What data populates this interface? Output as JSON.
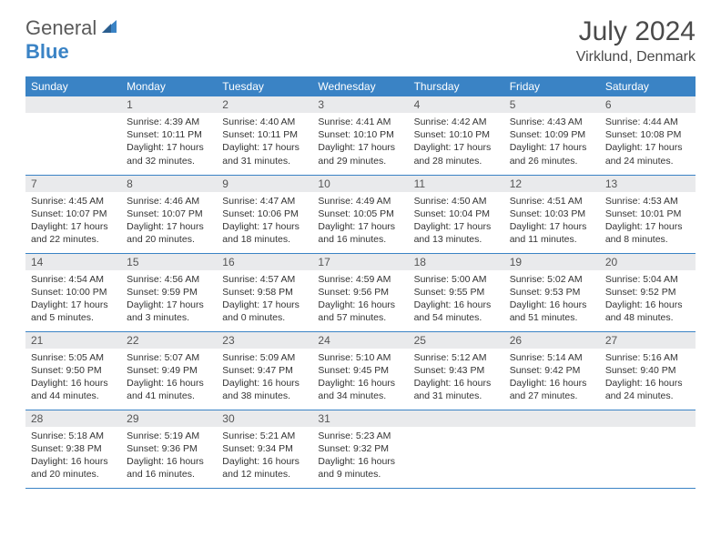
{
  "brand": {
    "word1": "General",
    "word2": "Blue",
    "logo_color": "#3a83c5"
  },
  "title": "July 2024",
  "location": "Virklund, Denmark",
  "colors": {
    "header_bg": "#3a83c5",
    "header_text": "#ffffff",
    "daynum_bg": "#e9eaec",
    "row_border": "#3a83c5",
    "body_text": "#333333"
  },
  "day_headers": [
    "Sunday",
    "Monday",
    "Tuesday",
    "Wednesday",
    "Thursday",
    "Friday",
    "Saturday"
  ],
  "weeks": [
    [
      {
        "n": "",
        "sunrise": "",
        "sunset": "",
        "daylight": ""
      },
      {
        "n": "1",
        "sunrise": "Sunrise: 4:39 AM",
        "sunset": "Sunset: 10:11 PM",
        "daylight": "Daylight: 17 hours and 32 minutes."
      },
      {
        "n": "2",
        "sunrise": "Sunrise: 4:40 AM",
        "sunset": "Sunset: 10:11 PM",
        "daylight": "Daylight: 17 hours and 31 minutes."
      },
      {
        "n": "3",
        "sunrise": "Sunrise: 4:41 AM",
        "sunset": "Sunset: 10:10 PM",
        "daylight": "Daylight: 17 hours and 29 minutes."
      },
      {
        "n": "4",
        "sunrise": "Sunrise: 4:42 AM",
        "sunset": "Sunset: 10:10 PM",
        "daylight": "Daylight: 17 hours and 28 minutes."
      },
      {
        "n": "5",
        "sunrise": "Sunrise: 4:43 AM",
        "sunset": "Sunset: 10:09 PM",
        "daylight": "Daylight: 17 hours and 26 minutes."
      },
      {
        "n": "6",
        "sunrise": "Sunrise: 4:44 AM",
        "sunset": "Sunset: 10:08 PM",
        "daylight": "Daylight: 17 hours and 24 minutes."
      }
    ],
    [
      {
        "n": "7",
        "sunrise": "Sunrise: 4:45 AM",
        "sunset": "Sunset: 10:07 PM",
        "daylight": "Daylight: 17 hours and 22 minutes."
      },
      {
        "n": "8",
        "sunrise": "Sunrise: 4:46 AM",
        "sunset": "Sunset: 10:07 PM",
        "daylight": "Daylight: 17 hours and 20 minutes."
      },
      {
        "n": "9",
        "sunrise": "Sunrise: 4:47 AM",
        "sunset": "Sunset: 10:06 PM",
        "daylight": "Daylight: 17 hours and 18 minutes."
      },
      {
        "n": "10",
        "sunrise": "Sunrise: 4:49 AM",
        "sunset": "Sunset: 10:05 PM",
        "daylight": "Daylight: 17 hours and 16 minutes."
      },
      {
        "n": "11",
        "sunrise": "Sunrise: 4:50 AM",
        "sunset": "Sunset: 10:04 PM",
        "daylight": "Daylight: 17 hours and 13 minutes."
      },
      {
        "n": "12",
        "sunrise": "Sunrise: 4:51 AM",
        "sunset": "Sunset: 10:03 PM",
        "daylight": "Daylight: 17 hours and 11 minutes."
      },
      {
        "n": "13",
        "sunrise": "Sunrise: 4:53 AM",
        "sunset": "Sunset: 10:01 PM",
        "daylight": "Daylight: 17 hours and 8 minutes."
      }
    ],
    [
      {
        "n": "14",
        "sunrise": "Sunrise: 4:54 AM",
        "sunset": "Sunset: 10:00 PM",
        "daylight": "Daylight: 17 hours and 5 minutes."
      },
      {
        "n": "15",
        "sunrise": "Sunrise: 4:56 AM",
        "sunset": "Sunset: 9:59 PM",
        "daylight": "Daylight: 17 hours and 3 minutes."
      },
      {
        "n": "16",
        "sunrise": "Sunrise: 4:57 AM",
        "sunset": "Sunset: 9:58 PM",
        "daylight": "Daylight: 17 hours and 0 minutes."
      },
      {
        "n": "17",
        "sunrise": "Sunrise: 4:59 AM",
        "sunset": "Sunset: 9:56 PM",
        "daylight": "Daylight: 16 hours and 57 minutes."
      },
      {
        "n": "18",
        "sunrise": "Sunrise: 5:00 AM",
        "sunset": "Sunset: 9:55 PM",
        "daylight": "Daylight: 16 hours and 54 minutes."
      },
      {
        "n": "19",
        "sunrise": "Sunrise: 5:02 AM",
        "sunset": "Sunset: 9:53 PM",
        "daylight": "Daylight: 16 hours and 51 minutes."
      },
      {
        "n": "20",
        "sunrise": "Sunrise: 5:04 AM",
        "sunset": "Sunset: 9:52 PM",
        "daylight": "Daylight: 16 hours and 48 minutes."
      }
    ],
    [
      {
        "n": "21",
        "sunrise": "Sunrise: 5:05 AM",
        "sunset": "Sunset: 9:50 PM",
        "daylight": "Daylight: 16 hours and 44 minutes."
      },
      {
        "n": "22",
        "sunrise": "Sunrise: 5:07 AM",
        "sunset": "Sunset: 9:49 PM",
        "daylight": "Daylight: 16 hours and 41 minutes."
      },
      {
        "n": "23",
        "sunrise": "Sunrise: 5:09 AM",
        "sunset": "Sunset: 9:47 PM",
        "daylight": "Daylight: 16 hours and 38 minutes."
      },
      {
        "n": "24",
        "sunrise": "Sunrise: 5:10 AM",
        "sunset": "Sunset: 9:45 PM",
        "daylight": "Daylight: 16 hours and 34 minutes."
      },
      {
        "n": "25",
        "sunrise": "Sunrise: 5:12 AM",
        "sunset": "Sunset: 9:43 PM",
        "daylight": "Daylight: 16 hours and 31 minutes."
      },
      {
        "n": "26",
        "sunrise": "Sunrise: 5:14 AM",
        "sunset": "Sunset: 9:42 PM",
        "daylight": "Daylight: 16 hours and 27 minutes."
      },
      {
        "n": "27",
        "sunrise": "Sunrise: 5:16 AM",
        "sunset": "Sunset: 9:40 PM",
        "daylight": "Daylight: 16 hours and 24 minutes."
      }
    ],
    [
      {
        "n": "28",
        "sunrise": "Sunrise: 5:18 AM",
        "sunset": "Sunset: 9:38 PM",
        "daylight": "Daylight: 16 hours and 20 minutes."
      },
      {
        "n": "29",
        "sunrise": "Sunrise: 5:19 AM",
        "sunset": "Sunset: 9:36 PM",
        "daylight": "Daylight: 16 hours and 16 minutes."
      },
      {
        "n": "30",
        "sunrise": "Sunrise: 5:21 AM",
        "sunset": "Sunset: 9:34 PM",
        "daylight": "Daylight: 16 hours and 12 minutes."
      },
      {
        "n": "31",
        "sunrise": "Sunrise: 5:23 AM",
        "sunset": "Sunset: 9:32 PM",
        "daylight": "Daylight: 16 hours and 9 minutes."
      },
      {
        "n": "",
        "sunrise": "",
        "sunset": "",
        "daylight": ""
      },
      {
        "n": "",
        "sunrise": "",
        "sunset": "",
        "daylight": ""
      },
      {
        "n": "",
        "sunrise": "",
        "sunset": "",
        "daylight": ""
      }
    ]
  ]
}
